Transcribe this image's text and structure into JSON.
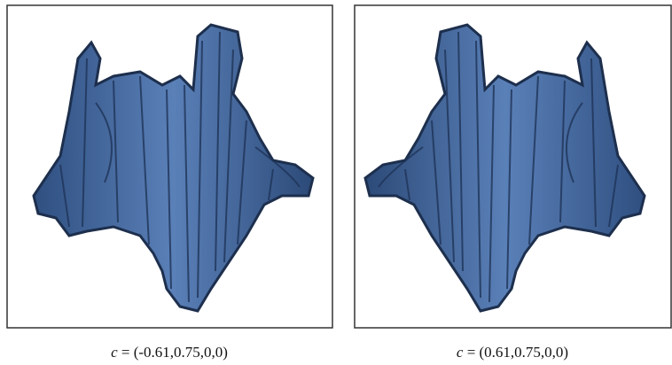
{
  "panels": [
    {
      "caption": {
        "symbol": "c",
        "text": "= (-0.61,0.75,0,0)"
      }
    },
    {
      "caption": {
        "symbol": "c",
        "text": "= (0.61,0.75,0,0)"
      }
    }
  ]
}
